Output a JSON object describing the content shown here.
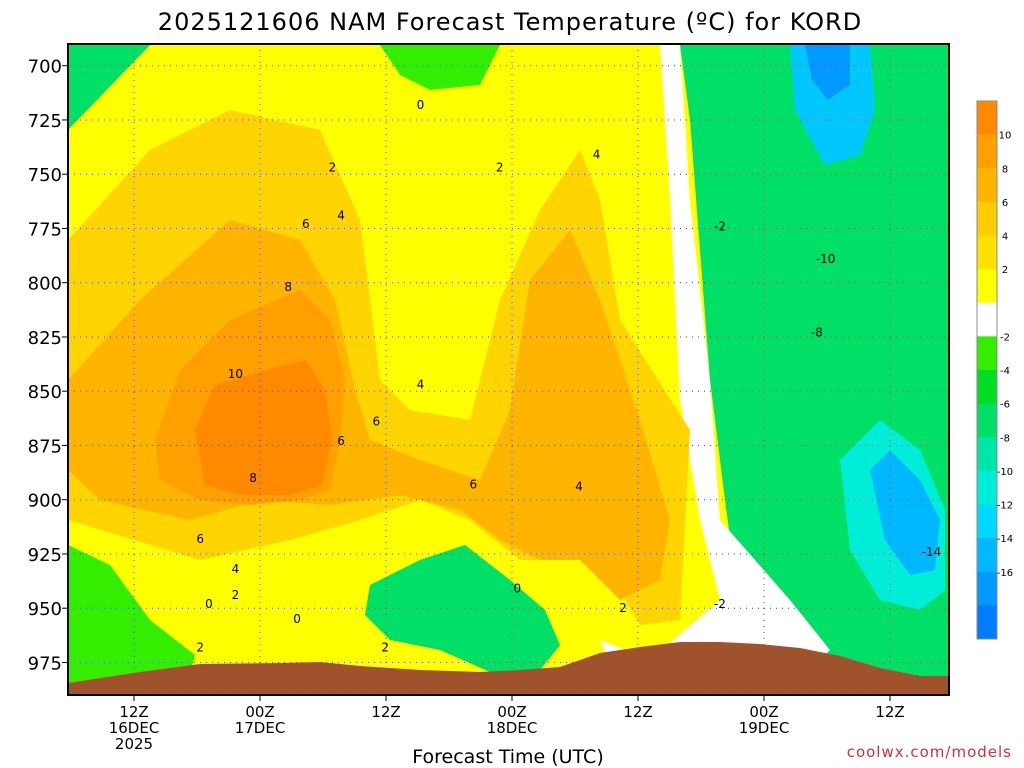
{
  "chart_data": {
    "type": "heatmap",
    "title": "2025121606 NAM Forecast Temperature (ºC) for KORD",
    "xlabel": "Forecast Time (UTC)",
    "ylabel": "",
    "credit": "coolwx.com/models",
    "y_axis": {
      "ticks": [
        "700",
        "725",
        "750",
        "775",
        "800",
        "825",
        "850",
        "875",
        "900",
        "925",
        "950",
        "975"
      ],
      "range": [
        690,
        990
      ]
    },
    "x_axis": {
      "ticks": [
        {
          "line1": "12Z",
          "line2": "16DEC",
          "line3": "2025"
        },
        {
          "line1": "00Z",
          "line2": "17DEC",
          "line3": ""
        },
        {
          "line1": "12Z",
          "line2": "",
          "line3": ""
        },
        {
          "line1": "00Z",
          "line2": "18DEC",
          "line3": ""
        },
        {
          "line1": "12Z",
          "line2": "",
          "line3": ""
        },
        {
          "line1": "00Z",
          "line2": "19DEC",
          "line3": ""
        },
        {
          "line1": "12Z",
          "line2": "",
          "line3": ""
        }
      ]
    },
    "colorbar": {
      "labels": [
        "10",
        "8",
        "6",
        "4",
        "2",
        "-2",
        "-4",
        "-6",
        "-8",
        "-10",
        "-12",
        "-14",
        "-16"
      ],
      "colors": [
        "#ff8a00",
        "#ff9f00",
        "#ffb400",
        "#ffcc00",
        "#ffe000",
        "#ffff00",
        "#ffffff",
        "#33ee00",
        "#00dd22",
        "#00e066",
        "#00e6a6",
        "#00eed8",
        "#00d8ff",
        "#00b8ff",
        "#0099ff",
        "#007dff"
      ]
    },
    "contour_labels": [
      {
        "text": "0",
        "t": 0.4,
        "p": 718
      },
      {
        "text": "2",
        "t": 0.3,
        "p": 747
      },
      {
        "text": "2",
        "t": 0.49,
        "p": 747
      },
      {
        "text": "4",
        "t": 0.31,
        "p": 769
      },
      {
        "text": "4",
        "t": 0.6,
        "p": 741
      },
      {
        "text": "6",
        "t": 0.27,
        "p": 773
      },
      {
        "text": "8",
        "t": 0.25,
        "p": 802
      },
      {
        "text": "10",
        "t": 0.19,
        "p": 842
      },
      {
        "text": "4",
        "t": 0.4,
        "p": 847
      },
      {
        "text": "6",
        "t": 0.35,
        "p": 864
      },
      {
        "text": "6",
        "t": 0.31,
        "p": 873
      },
      {
        "text": "8",
        "t": 0.21,
        "p": 890
      },
      {
        "text": "6",
        "t": 0.46,
        "p": 893
      },
      {
        "text": "4",
        "t": 0.58,
        "p": 894
      },
      {
        "text": "6",
        "t": 0.15,
        "p": 918
      },
      {
        "text": "4",
        "t": 0.19,
        "p": 932
      },
      {
        "text": "0",
        "t": 0.16,
        "p": 948
      },
      {
        "text": "2",
        "t": 0.19,
        "p": 944
      },
      {
        "text": "2",
        "t": 0.15,
        "p": 968
      },
      {
        "text": "0",
        "t": 0.26,
        "p": 955
      },
      {
        "text": "2",
        "t": 0.36,
        "p": 968
      },
      {
        "text": "0",
        "t": 0.51,
        "p": 941
      },
      {
        "text": "2",
        "t": 0.63,
        "p": 950
      },
      {
        "text": "-2",
        "t": 0.74,
        "p": 948
      },
      {
        "text": "-2",
        "t": 0.74,
        "p": 774
      },
      {
        "text": "-10",
        "t": 0.86,
        "p": 789
      },
      {
        "text": "-8",
        "t": 0.85,
        "p": 823
      },
      {
        "text": "-14",
        "t": 0.98,
        "p": 924
      }
    ]
  }
}
